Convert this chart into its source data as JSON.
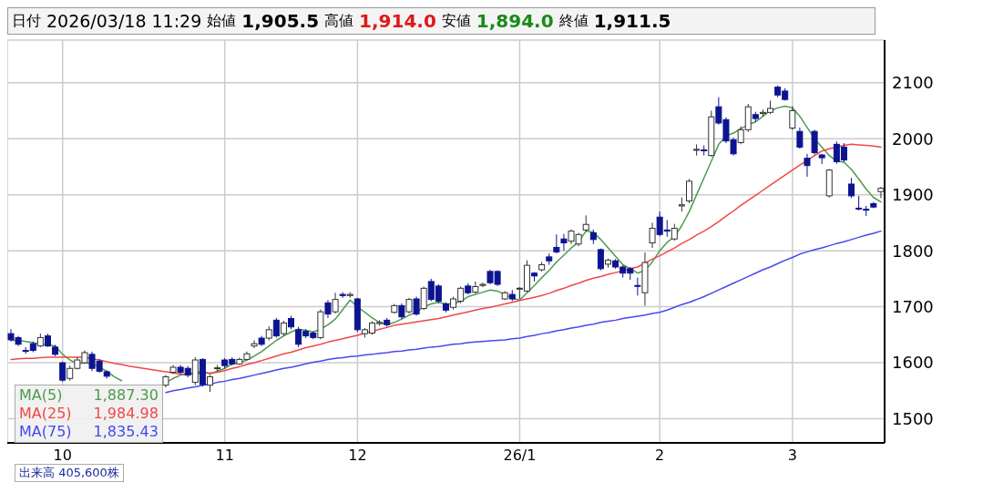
{
  "chart_data": {
    "type": "candlestick",
    "title": "日付 2026/03/18 11:29 始値 1,905.5 高値 1,914.0 安値 1,894.0 終値 1,911.5",
    "categories": [
      null,
      null,
      null,
      null,
      null,
      null,
      null,
      "10",
      null,
      null,
      null,
      null,
      null,
      null,
      null,
      null,
      null,
      null,
      null,
      null,
      null,
      null,
      null,
      null,
      null,
      null,
      null,
      null,
      null,
      "11",
      null,
      null,
      null,
      null,
      null,
      null,
      null,
      null,
      null,
      null,
      null,
      null,
      null,
      null,
      null,
      null,
      null,
      "12",
      null,
      null,
      null,
      null,
      null,
      null,
      null,
      null,
      null,
      null,
      null,
      null,
      null,
      null,
      null,
      null,
      null,
      null,
      null,
      null,
      null,
      "26/1",
      null,
      null,
      null,
      null,
      null,
      null,
      null,
      null,
      null,
      null,
      null,
      null,
      null,
      null,
      null,
      null,
      null,
      null,
      "2",
      null,
      null,
      null,
      null,
      null,
      null,
      null,
      null,
      null,
      null,
      null,
      null,
      null,
      null,
      null,
      null,
      null,
      "3",
      null,
      null,
      null,
      null,
      null,
      null,
      null,
      null,
      null,
      null,
      null,
      null
    ],
    "ohlc": [
      [
        1652,
        1660,
        1638,
        1641
      ],
      [
        1645,
        1648,
        1630,
        1633
      ],
      [
        1622,
        1628,
        1616,
        1621
      ],
      [
        1634,
        1638,
        1619,
        1622
      ],
      [
        1630,
        1652,
        1628,
        1645
      ],
      [
        1648,
        1652,
        1628,
        1630
      ],
      [
        1628,
        1632,
        1612,
        1615
      ],
      [
        1600,
        1602,
        1566,
        1569
      ],
      [
        1572,
        1595,
        1568,
        1590
      ],
      [
        1590,
        1610,
        1588,
        1605
      ],
      [
        1600,
        1622,
        1598,
        1618
      ],
      [
        1615,
        1620,
        1585,
        1590
      ],
      [
        1603,
        1606,
        1582,
        1585
      ],
      [
        1584,
        1586,
        1572,
        1576
      ],
      null,
      null,
      null,
      null,
      null,
      null,
      null,
      [
        1560,
        1578,
        1556,
        1575
      ],
      [
        1583,
        1596,
        1580,
        1592
      ],
      [
        1592,
        1596,
        1580,
        1583
      ],
      [
        1590,
        1594,
        1574,
        1578
      ],
      [
        1565,
        1610,
        1560,
        1605
      ],
      [
        1606,
        1608,
        1558,
        1561
      ],
      [
        1560,
        1578,
        1548,
        1575
      ],
      [
        1590,
        1596,
        1585,
        1591
      ],
      [
        1605,
        1608,
        1590,
        1595
      ],
      [
        1606,
        1610,
        1595,
        1598
      ],
      [
        1598,
        1609,
        1596,
        1606
      ],
      [
        1606,
        1620,
        1604,
        1616
      ],
      [
        1630,
        1640,
        1626,
        1634
      ],
      [
        1644,
        1648,
        1630,
        1633
      ],
      [
        1644,
        1665,
        1640,
        1659
      ],
      [
        1676,
        1680,
        1645,
        1648
      ],
      [
        1652,
        1675,
        1648,
        1671
      ],
      [
        1679,
        1684,
        1660,
        1664
      ],
      [
        1659,
        1664,
        1628,
        1633
      ],
      [
        1656,
        1660,
        1644,
        1648
      ],
      [
        1653,
        1656,
        1642,
        1645
      ],
      [
        1645,
        1695,
        1642,
        1691
      ],
      [
        1707,
        1712,
        1680,
        1687
      ],
      [
        1691,
        1725,
        1688,
        1713
      ],
      [
        1722,
        1726,
        1716,
        1720
      ],
      [
        1720,
        1726,
        1716,
        1722
      ],
      [
        1714,
        1716,
        1655,
        1659
      ],
      [
        1652,
        1662,
        1645,
        1659
      ],
      [
        1653,
        1674,
        1650,
        1671
      ],
      [
        1670,
        1676,
        1666,
        1672
      ],
      [
        1676,
        1680,
        1664,
        1668
      ],
      [
        1690,
        1705,
        1688,
        1702
      ],
      [
        1702,
        1706,
        1678,
        1682
      ],
      [
        1691,
        1716,
        1688,
        1713
      ],
      [
        1714,
        1718,
        1684,
        1687
      ],
      [
        1697,
        1736,
        1694,
        1733
      ],
      [
        1745,
        1750,
        1710,
        1713
      ],
      [
        1737,
        1740,
        1706,
        1710
      ],
      [
        1705,
        1708,
        1690,
        1694
      ],
      [
        1699,
        1718,
        1695,
        1714
      ],
      [
        1710,
        1736,
        1706,
        1733
      ],
      [
        1737,
        1742,
        1722,
        1725
      ],
      [
        1726,
        1745,
        1723,
        1736
      ],
      [
        1738,
        1743,
        1735,
        1740
      ],
      [
        1763,
        1766,
        1740,
        1743
      ],
      [
        1763,
        1765,
        1737,
        1740
      ],
      [
        1714,
        1728,
        1712,
        1725
      ],
      [
        1722,
        1730,
        1710,
        1714
      ],
      [
        1732,
        1735,
        1714,
        1733
      ],
      [
        1728,
        1783,
        1726,
        1774
      ],
      [
        1760,
        1762,
        1745,
        1755
      ],
      [
        1766,
        1780,
        1763,
        1775
      ],
      [
        1789,
        1795,
        1775,
        1782
      ],
      [
        1806,
        1829,
        1795,
        1798
      ],
      [
        1821,
        1830,
        1800,
        1814
      ],
      [
        1817,
        1838,
        1812,
        1835
      ],
      [
        1812,
        1832,
        1808,
        1829
      ],
      [
        1837,
        1863,
        1834,
        1847
      ],
      [
        1832,
        1838,
        1812,
        1820
      ],
      [
        1802,
        1804,
        1765,
        1768
      ],
      [
        1776,
        1786,
        1770,
        1783
      ],
      [
        1782,
        1785,
        1768,
        1771
      ],
      [
        1771,
        1774,
        1752,
        1760
      ],
      [
        1768,
        1771,
        1748,
        1760
      ],
      [
        1738,
        1752,
        1720,
        1737
      ],
      [
        1725,
        1797,
        1702,
        1779
      ],
      [
        1814,
        1850,
        1805,
        1840
      ],
      [
        1860,
        1870,
        1826,
        1829
      ],
      [
        1837,
        1855,
        1825,
        1835
      ],
      [
        1821,
        1848,
        1818,
        1840
      ],
      [
        1880,
        1895,
        1870,
        1882
      ],
      [
        1889,
        1928,
        1885,
        1924
      ],
      [
        1980,
        1990,
        1970,
        1981
      ],
      [
        1980,
        1988,
        1970,
        1979
      ],
      [
        1970,
        2050,
        1968,
        2039
      ],
      [
        2057,
        2074,
        2025,
        2028
      ],
      [
        2034,
        2038,
        1992,
        1996
      ],
      [
        1998,
        2002,
        1970,
        1973
      ],
      [
        1993,
        2022,
        1990,
        2016
      ],
      [
        2016,
        2062,
        2012,
        2057
      ],
      [
        2043,
        2048,
        2030,
        2036
      ],
      [
        2045,
        2052,
        2040,
        2047
      ],
      [
        2047,
        2068,
        2044,
        2054
      ],
      [
        2092,
        2095,
        2074,
        2078
      ],
      [
        2085,
        2090,
        2068,
        2070
      ],
      [
        2019,
        2058,
        2016,
        2050
      ],
      [
        2013,
        2020,
        1982,
        1985
      ],
      [
        1965,
        1973,
        1932,
        1952
      ],
      [
        2013,
        2016,
        1972,
        1975
      ],
      [
        1971,
        1973,
        1955,
        1966
      ],
      [
        1898,
        1946,
        1895,
        1944
      ],
      [
        1990,
        1995,
        1955,
        1959
      ],
      [
        1985,
        1992,
        1958,
        1962
      ],
      [
        1919,
        1930,
        1894,
        1898
      ],
      [
        1876,
        1898,
        1872,
        1875
      ],
      [
        1874,
        1880,
        1862,
        1873
      ],
      [
        1884,
        1887,
        1876,
        1878
      ],
      [
        1905.5,
        1914.0,
        1894.0,
        1911.5
      ]
    ],
    "series": [
      {
        "name": "MA(5)",
        "type": "line",
        "color": "#4e9a4e",
        "values": [
          1640,
          1640,
          1638,
          1636,
          1633,
          1632,
          1630,
          1615,
          1605,
          1598,
          1600,
          1598,
          1592,
          1585,
          1575,
          1568,
          null,
          null,
          null,
          null,
          null,
          1565,
          1572,
          1578,
          1580,
          1582,
          1585,
          1580,
          1585,
          1590,
          1598,
          1600,
          1605,
          1612,
          1620,
          1630,
          1640,
          1648,
          1655,
          1660,
          1658,
          1655,
          1660,
          1668,
          1678,
          1695,
          1712,
          1700,
          1690,
          1680,
          1672,
          1668,
          1672,
          1678,
          1685,
          1690,
          1700,
          1705,
          1708,
          1705,
          1705,
          1710,
          1718,
          1722,
          1726,
          1730,
          1728,
          1722,
          1715,
          1712,
          1725,
          1738,
          1752,
          1765,
          1780,
          1792,
          1805,
          1816,
          1835,
          1833,
          1820,
          1805,
          1790,
          1775,
          1768,
          1760,
          1765,
          1780,
          1800,
          1815,
          1825,
          1845,
          1870,
          1900,
          1930,
          1960,
          1990,
          2005,
          2010,
          2018,
          2025,
          2030,
          2040,
          2050,
          2055,
          2058,
          2055,
          2040,
          2020,
          2000,
          1985,
          1970,
          1960,
          1958,
          1945,
          1928,
          1910,
          1895,
          1887
        ]
      },
      {
        "name": "MA(25)",
        "type": "line",
        "color": "#f04848",
        "values": [
          1606,
          1607,
          1608,
          1608,
          1609,
          1610,
          1610,
          1610,
          1610,
          1610,
          1610,
          1607,
          1605,
          1602,
          1599,
          1597,
          1594,
          1592,
          1590,
          1588,
          1586,
          1584,
          1582,
          1580,
          1580,
          1581,
          1581,
          1582,
          1583,
          1586,
          1590,
          1593,
          1597,
          1600,
          1604,
          1608,
          1612,
          1616,
          1619,
          1623,
          1627,
          1630,
          1633,
          1637,
          1640,
          1643,
          1646,
          1649,
          1653,
          1656,
          1660,
          1663,
          1667,
          1669,
          1671,
          1673,
          1675,
          1677,
          1679,
          1682,
          1685,
          1688,
          1691,
          1694,
          1697,
          1699,
          1702,
          1705,
          1708,
          1711,
          1714,
          1717,
          1720,
          1724,
          1729,
          1733,
          1738,
          1742,
          1747,
          1751,
          1754,
          1758,
          1761,
          1764,
          1768,
          1771,
          1778,
          1785,
          1791,
          1798,
          1805,
          1813,
          1820,
          1828,
          1835,
          1843,
          1852,
          1862,
          1871,
          1881,
          1890,
          1899,
          1908,
          1917,
          1926,
          1935,
          1944,
          1953,
          1961,
          1970,
          1978,
          1982,
          1985,
          1988,
          1990,
          1989,
          1988,
          1987,
          1985
        ]
      },
      {
        "name": "MA(75)",
        "type": "line",
        "color": "#4848f0",
        "values": [
          null,
          null,
          null,
          null,
          null,
          null,
          null,
          null,
          null,
          null,
          null,
          null,
          null,
          null,
          null,
          null,
          null,
          null,
          null,
          null,
          null,
          1547,
          1550,
          1552,
          1555,
          1557,
          1560,
          1562,
          1565,
          1567,
          1570,
          1572,
          1575,
          1578,
          1581,
          1584,
          1587,
          1590,
          1592,
          1595,
          1598,
          1601,
          1603,
          1606,
          1608,
          1609,
          1611,
          1612,
          1614,
          1615,
          1617,
          1618,
          1620,
          1621,
          1623,
          1624,
          1626,
          1628,
          1629,
          1631,
          1633,
          1634,
          1636,
          1637,
          1638,
          1639,
          1640,
          1641,
          1643,
          1644,
          1647,
          1649,
          1652,
          1654,
          1657,
          1659,
          1662,
          1664,
          1667,
          1669,
          1672,
          1674,
          1676,
          1679,
          1681,
          1683,
          1685,
          1688,
          1690,
          1694,
          1699,
          1704,
          1708,
          1713,
          1718,
          1724,
          1730,
          1736,
          1742,
          1748,
          1754,
          1760,
          1766,
          1771,
          1777,
          1783,
          1788,
          1794,
          1798,
          1802,
          1805,
          1809,
          1813,
          1816,
          1820,
          1824,
          1828,
          1831,
          1835
        ]
      }
    ],
    "annotations": [
      "1,887.30",
      "1,984.98",
      "1,835.43",
      "出来高 405,600株"
    ],
    "ylim": [
      1457,
      2176
    ],
    "yticks": [
      1500,
      1600,
      1700,
      1800,
      1900,
      2000,
      2100
    ],
    "grid": true,
    "legend": "bottom left"
  }
}
